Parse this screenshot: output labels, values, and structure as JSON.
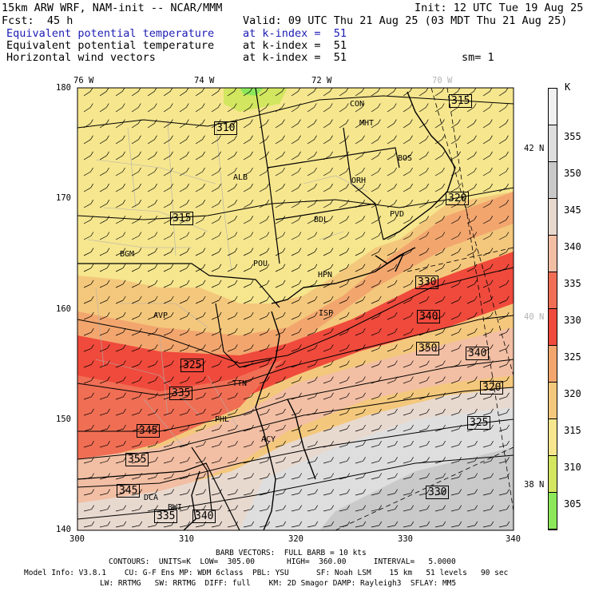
{
  "header": {
    "model_line": "15km ARW WRF, NAM-init -- NCAR/MMM",
    "init": "Init: 12 UTC Tue 19 Aug 25",
    "fcst": "Fcst:  45 h",
    "valid": "Valid: 09 UTC Thu 21 Aug 25 (03 MDT Thu 21 Aug 25)",
    "rows": [
      {
        "name": "Equivalent potential temperature",
        "level": "at k-index =  51",
        "extra": ""
      },
      {
        "name": "Equivalent potential temperature",
        "level": "at k-index =  51",
        "extra": ""
      },
      {
        "name": "Horizontal wind vectors",
        "level": "at k-index =  51",
        "extra": "sm= 1"
      }
    ]
  },
  "map": {
    "lon_labels": [
      "76 W",
      "74 W",
      "72 W",
      "70 W"
    ],
    "lat_labels": [
      "42 N",
      "40 N",
      "38 N"
    ],
    "x_ticks": [
      "300",
      "310",
      "320",
      "330",
      "340"
    ],
    "y_ticks": [
      "180",
      "170",
      "160",
      "150",
      "140"
    ],
    "stations": [
      "CON",
      "MHT",
      "BOS",
      "ORH",
      "ALB",
      "BDL",
      "PVD",
      "BGM",
      "POU",
      "HPN",
      "ISP",
      "AVP",
      "TTN",
      "PHL",
      "ACY",
      "DCA",
      "BWI"
    ],
    "contour_labels": [
      "310",
      "315",
      "315",
      "320",
      "325",
      "330",
      "335",
      "340",
      "345",
      "350",
      "355",
      "340",
      "345",
      "320",
      "325",
      "330",
      "335",
      "340"
    ]
  },
  "colorbar": {
    "unit": "K",
    "labels": [
      "355",
      "350",
      "345",
      "340",
      "335",
      "330",
      "325",
      "320",
      "315",
      "310",
      "305"
    ]
  },
  "footer": {
    "barb": "BARB VECTORS:  FULL BARB = 10 kts",
    "contours": "CONTOURS:  UNITS=K  LOW=  305.00       HIGH=  360.00      INTERVAL=   5.0000",
    "model1": "Model Info: V3.8.1    CU: G-F Ens MP: WDM 6class  PBL: YSU      SF: Noah LSM    15 km   51 levels   90 sec",
    "model2": "LW: RRTMG   SW: RRTMG  DIFF: full    KM: 2D Smagor DAMP: Rayleigh3  SFLAY: MM5"
  },
  "colors": {
    "c305": "#8ce85a",
    "c310": "#d2e65f",
    "c315": "#f6e68e",
    "c320": "#f4c87c",
    "c325": "#f2a66e",
    "c330": "#ef4a3c",
    "c335": "#f06e54",
    "c340": "#f2bfa4",
    "c345": "#e8d9cf",
    "c350": "#c9c9c9",
    "c355": "#dedede",
    "c360": "#f0f0f0"
  }
}
